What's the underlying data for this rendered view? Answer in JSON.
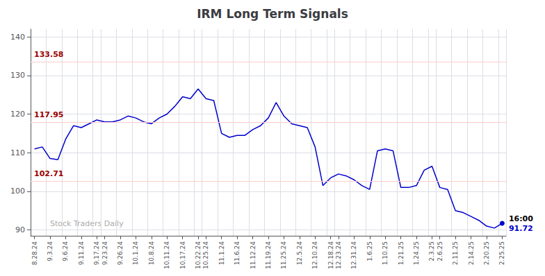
{
  "chart_data": {
    "type": "line",
    "title": "IRM Long Term Signals",
    "categories": [
      "8.28.24",
      null,
      "9.3.24",
      null,
      "9.6.24",
      null,
      "9.11.24",
      null,
      "9.17.24",
      "9.23.24",
      null,
      "9.26.24",
      null,
      "10.1.24",
      null,
      "10.8.24",
      null,
      "10.11.24",
      null,
      "10.17.24",
      null,
      "10.22.24",
      "10.25.24",
      null,
      "11.1.24",
      null,
      "11.6.24",
      null,
      "11.12.24",
      null,
      "11.19.24",
      null,
      "11.25.24",
      null,
      "12.5.24",
      null,
      "12.10.24",
      null,
      "12.18.24",
      "12.23.24",
      null,
      "12.31.24",
      null,
      "1.6.25",
      null,
      "1.10.25",
      null,
      "1.21.25",
      null,
      "1.24.25",
      null,
      "2.3.25",
      "2.6.25",
      null,
      "2.11.25",
      null,
      "2.14.25",
      null,
      "2.20.25",
      null,
      "2.25.25"
    ],
    "values": [
      111.0,
      111.5,
      108.5,
      108.2,
      113.5,
      117.0,
      116.5,
      117.5,
      118.5,
      118.0,
      118.0,
      118.5,
      119.5,
      119.0,
      118.0,
      117.5,
      119.0,
      120.0,
      122.0,
      124.5,
      124.0,
      126.5,
      124.0,
      123.5,
      115.0,
      114.0,
      114.5,
      114.5,
      116.0,
      117.0,
      119.0,
      123.0,
      119.5,
      117.5,
      117.0,
      116.5,
      111.5,
      101.5,
      103.5,
      104.5,
      104.0,
      103.0,
      101.5,
      100.5,
      110.5,
      111.0,
      110.5,
      101.0,
      101.0,
      101.5,
      105.5,
      106.5,
      101.0,
      100.5,
      95.0,
      94.5,
      93.5,
      92.5,
      91.0,
      90.5,
      91.72
    ],
    "color": "#0000cc",
    "ylim": [
      88.5,
      142
    ],
    "yticks": [
      90,
      100,
      110,
      120,
      130,
      140
    ],
    "grid": true,
    "hlines": [
      {
        "value": 133.58,
        "label": "133.58",
        "color": "#ffcccc",
        "label_color": "#990000"
      },
      {
        "value": 117.95,
        "label": "117.95",
        "color": "#ffcccc",
        "label_color": "#990000"
      },
      {
        "value": 102.71,
        "label": "102.71",
        "color": "#ffcccc",
        "label_color": "#990000"
      }
    ],
    "annotations": [
      {
        "text": "16:00",
        "color": "#000000"
      },
      {
        "text": "91.72",
        "color": "#0000cc"
      }
    ],
    "watermark": {
      "text": "Stock Traders Daily",
      "color": "#aaaaaa"
    }
  }
}
